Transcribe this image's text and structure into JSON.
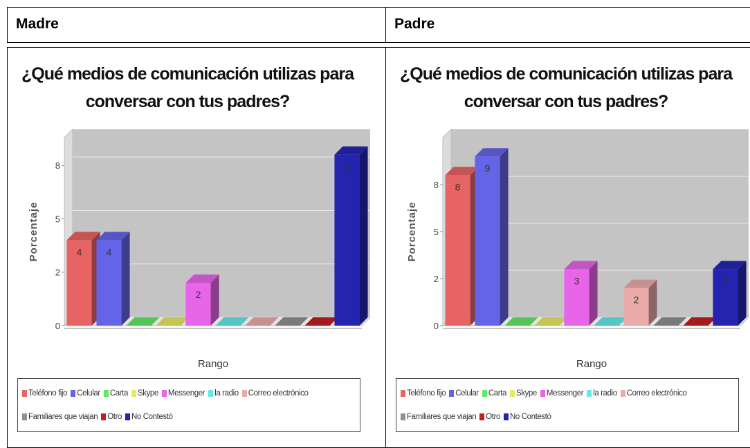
{
  "table": {
    "headers": [
      "Madre",
      "Padre"
    ]
  },
  "chart_data": [
    {
      "type": "bar3d",
      "title": "¿Qué medios de comunicación utilizas para conversar con tus padres?",
      "y_label": "Porcentaje",
      "x_label": "Rango",
      "categories": [
        "Teléfono fijo",
        "Celular",
        "Carta",
        "Skype",
        "Messenger",
        "la radio",
        "Correo electrónico",
        "Familiares que viajan",
        "Otro",
        "No Contestó"
      ],
      "values": [
        4,
        4,
        0,
        0,
        2,
        0,
        0,
        0,
        0,
        8
      ],
      "colors": [
        "#e86464",
        "#6464e8",
        "#64e864",
        "#e8e864",
        "#e864e8",
        "#64e8e8",
        "#eaaaaa",
        "#909090",
        "#c02020",
        "#2424b0"
      ],
      "ylim": [
        0,
        8.8
      ],
      "yticks": [
        0,
        {
          "value": 2.5,
          "label": "2"
        },
        5,
        {
          "value": 7.5,
          "label": "8"
        }
      ],
      "grid": true
    },
    {
      "type": "bar3d",
      "title": "¿Qué medios de comunicación utilizas para conversar con tus padres?",
      "y_label": "Porcentaje",
      "x_label": "Rango",
      "categories": [
        "Teléfono fijo",
        "Celular",
        "Carta",
        "Skype",
        "Messenger",
        "la radio",
        "Correo electrónico",
        "Familiares que viajan",
        "Otro",
        "No Contestó"
      ],
      "values": [
        8,
        9,
        0,
        0,
        3,
        0,
        2,
        0,
        0,
        3
      ],
      "colors": [
        "#e86464",
        "#6464e8",
        "#64e864",
        "#e8e864",
        "#e864e8",
        "#64e8e8",
        "#eaaaaa",
        "#909090",
        "#c02020",
        "#2424b0"
      ],
      "ylim": [
        0,
        10
      ],
      "yticks": [
        0,
        {
          "value": 2.5,
          "label": "2"
        },
        5,
        {
          "value": 7.5,
          "label": "8"
        }
      ],
      "grid": true
    }
  ]
}
